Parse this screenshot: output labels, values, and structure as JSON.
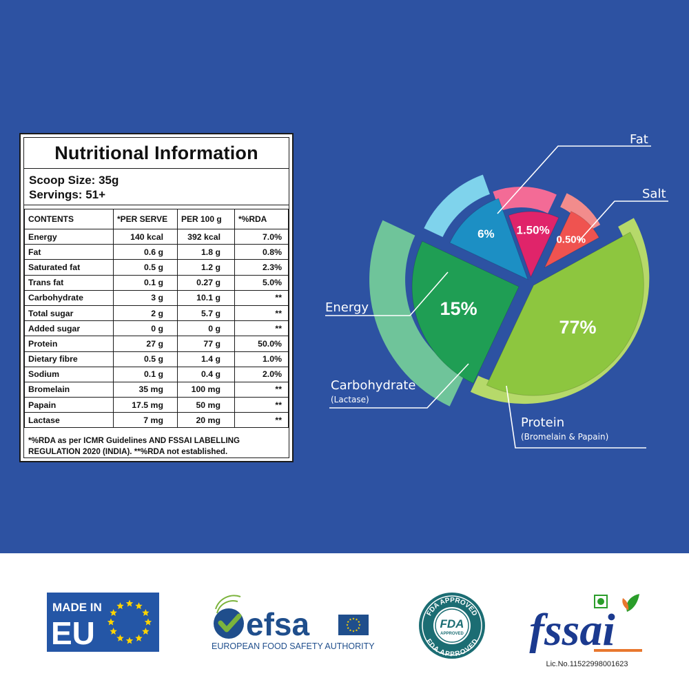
{
  "nutrition": {
    "title": "Nutritional Information",
    "scoop_size": "Scoop Size: 35g",
    "servings": "Servings: 51+",
    "headers": [
      "CONTENTS",
      "*PER SERVE",
      "PER 100 g",
      "*%RDA"
    ],
    "rows": [
      [
        "Energy",
        "140 kcal",
        "392 kcal",
        "7.0%"
      ],
      [
        "Fat",
        "0.6 g",
        "1.8 g",
        "0.8%"
      ],
      [
        "Saturated fat",
        "0.5 g",
        "1.2 g",
        "2.3%"
      ],
      [
        "Trans fat",
        "0.1 g",
        "0.27 g",
        "5.0%"
      ],
      [
        "Carbohydrate",
        "3 g",
        "10.1 g",
        "**"
      ],
      [
        "Total sugar",
        "2 g",
        "5.7 g",
        "**"
      ],
      [
        "Added sugar",
        "0 g",
        "0 g",
        "**"
      ],
      [
        "Protein",
        "27 g",
        "77 g",
        "50.0%"
      ],
      [
        "Dietary fibre",
        "0.5 g",
        "1.4 g",
        "1.0%"
      ],
      [
        "Sodium",
        "0.1 g",
        "0.4 g",
        "2.0%"
      ],
      [
        "Bromelain",
        "35 mg",
        "100 mg",
        "**"
      ],
      [
        "Papain",
        "17.5 mg",
        "50 mg",
        "**"
      ],
      [
        "Lactase",
        "7 mg",
        "20 mg",
        "**"
      ]
    ],
    "footnote": "*%RDA as per ICMR Guidelines AND FSSAI LABELLING REGULATION 2020 (INDIA). **%RDA not established."
  },
  "chart_data": {
    "type": "pie",
    "categories": [
      "Protein",
      "Carbohydrate",
      "Energy",
      "Fat",
      "Salt"
    ],
    "values": [
      77,
      15,
      6,
      1.5,
      0.5
    ],
    "value_labels": [
      "77%",
      "15%",
      "6%",
      "1.50%",
      "0.50%"
    ],
    "sublabels": [
      "(Bromelain & Papain)",
      "(Lactase)",
      "",
      "",
      ""
    ],
    "colors": [
      "#8dc63f",
      "#1f9e54",
      "#1c8fc4",
      "#e0246a",
      "#ef5350"
    ],
    "rim_colors": [
      "#b6d96a",
      "#6fc49a",
      "#7fd3ec",
      "#f36b96",
      "#f28c8c"
    ]
  },
  "logos": {
    "made_in": "MADE IN",
    "eu": "EU",
    "efsa_name": "efsa",
    "efsa_sub": "EUROPEAN FOOD SAFETY AUTHORITY",
    "fda_top": "FDA APPROVED",
    "fda_mid": "FDA",
    "fda_small": "APPROVED",
    "fda_bottom": "FDA APPROVED",
    "fssai": "fssai",
    "fssai_license": "Lic.No.11522998001623"
  },
  "colors": {
    "background_blue": "#2d52a2",
    "eu_blue": "#2456a6",
    "eu_star": "#ffd400",
    "efsa_blue": "#1f4e8c",
    "efsa_green": "#7bb33c",
    "fda_teal": "#1b6d73",
    "fssai_blue": "#1b3a8f",
    "fssai_orange": "#e8772e"
  }
}
